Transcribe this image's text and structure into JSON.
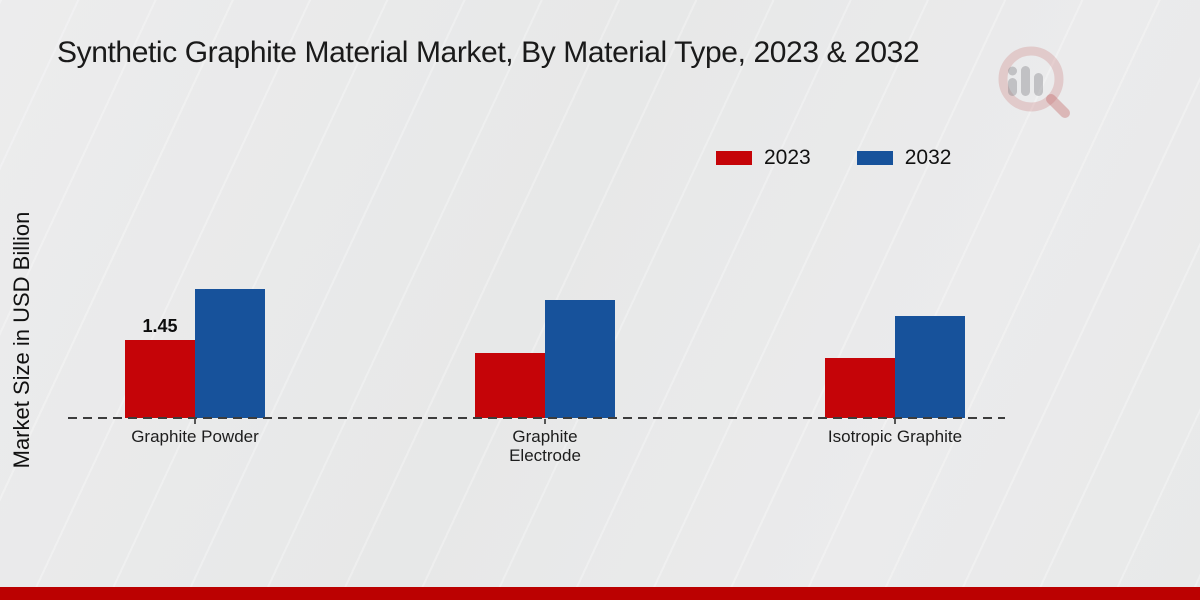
{
  "title": "Synthetic Graphite Material Market, By Material Type, 2023 & 2032",
  "ylabel": "Market Size in USD Billion",
  "colors": {
    "series_2023": "#c50408",
    "series_2032": "#17529b",
    "footer_strip": "#bb0101",
    "axis_dash": "#3c3c3c",
    "text": "#1a1a1a"
  },
  "chart_data": {
    "type": "bar",
    "categories": [
      "Graphite Powder",
      "Graphite Electrode",
      "Isotropic Graphite"
    ],
    "series": [
      {
        "name": "2023",
        "color": "#c50408",
        "values": [
          1.45,
          1.21,
          1.12
        ]
      },
      {
        "name": "2032",
        "color": "#17529b",
        "values": [
          2.4,
          2.19,
          1.9
        ]
      }
    ],
    "annotations": [
      {
        "series_index": 0,
        "category_index": 0,
        "text": "1.45"
      }
    ],
    "title": "Synthetic Graphite Material Market, By Material Type, 2023 & 2032",
    "xlabel": "",
    "ylabel": "Market Size in USD Billion",
    "ylim": [
      0,
      2.6
    ],
    "grid": false,
    "baseline_style": "dashed",
    "legend_position": "top-right"
  }
}
